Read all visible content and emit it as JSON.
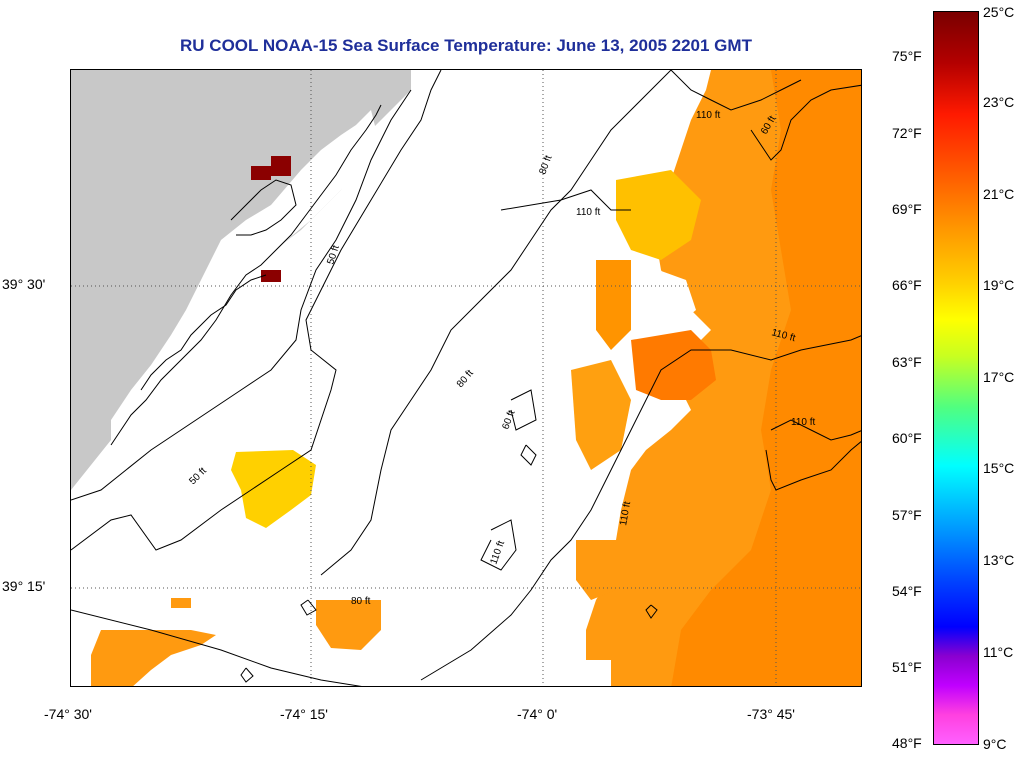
{
  "title": "RU COOL  NOAA-15  Sea Surface Temperature:  June 13, 2005 2201 GMT",
  "latitude_labels": [
    {
      "label": "39° 30'",
      "value": 39.5
    },
    {
      "label": "39° 15'",
      "value": 39.25
    }
  ],
  "longitude_labels": [
    {
      "label": "-74° 30'",
      "value": -74.5
    },
    {
      "label": "-74° 15'",
      "value": -74.25
    },
    {
      "label": "-74° 0'",
      "value": -74.0
    },
    {
      "label": "-73° 45'",
      "value": -73.75
    }
  ],
  "contour_labels": [
    "110 ft",
    "60 ft",
    "80 ft",
    "110 ft",
    "50 ft",
    "110 ft",
    "80 ft",
    "60 ft",
    "110 ft",
    "50 ft",
    "110 ft",
    "110 ft",
    "80 ft"
  ],
  "colorbar": {
    "fahrenheit": [
      "75°F",
      "72°F",
      "69°F",
      "66°F",
      "63°F",
      "60°F",
      "57°F",
      "54°F",
      "51°F",
      "48°F"
    ],
    "celsius": [
      "25°C",
      "23°C",
      "21°C",
      "19°C",
      "17°C",
      "15°C",
      "13°C",
      "11°C",
      "9°C"
    ]
  },
  "colors": {
    "land": "#c8c8c8",
    "warm_water": "#ff8c00",
    "title": "#1f2f9a"
  }
}
